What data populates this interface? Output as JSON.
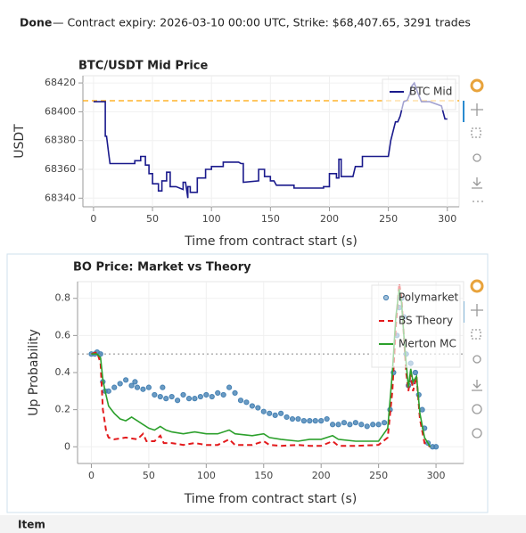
{
  "header": {
    "status": "Done",
    "text": "— Contract expiry: 2026-03-10 00:00 UTC, Strike: $68,407.65, 3291 trades"
  },
  "footer": {
    "label": "Item"
  },
  "chart_data": [
    {
      "type": "line",
      "title": "BTC/USDT Mid Price",
      "x_label": "Time from contract start (s)",
      "y_label": "USDT",
      "xlim": [
        -9,
        310
      ],
      "ylim": [
        68334,
        68425
      ],
      "xticks": [
        0,
        50,
        100,
        150,
        200,
        250,
        300
      ],
      "yticks": [
        68340,
        68360,
        68380,
        68400,
        68420
      ],
      "grid": true,
      "legend": "top_right",
      "hlines": [
        {
          "value": 68407.65,
          "color": "#ffa500",
          "dash": "dashed"
        }
      ],
      "series": [
        {
          "name": "BTC Mid",
          "color": "#1a1a8c",
          "style": "line",
          "x": [
            0,
            10,
            10,
            11,
            13,
            14,
            35,
            35,
            40,
            40,
            44,
            44,
            47,
            47,
            50,
            50,
            55,
            55,
            58,
            58,
            62,
            62,
            65,
            65,
            70,
            76,
            76,
            78,
            80,
            80,
            82,
            82,
            88,
            88,
            95,
            95,
            100,
            100,
            110,
            110,
            115,
            123,
            125,
            127,
            127,
            140,
            140,
            145,
            145,
            150,
            150,
            153,
            155,
            170,
            170,
            195,
            195,
            200,
            200,
            206,
            206,
            208,
            208,
            210,
            210,
            220,
            222,
            228,
            228,
            230,
            230,
            250,
            252,
            256,
            258,
            260,
            263,
            266,
            268,
            270,
            272,
            275,
            278,
            280,
            285,
            295,
            298,
            300
          ],
          "values": [
            68407,
            68407,
            68383,
            68383,
            68370,
            68364,
            68364,
            68366,
            68366,
            68369,
            68369,
            68363,
            68363,
            68357,
            68357,
            68350,
            68350,
            68345,
            68345,
            68352,
            68352,
            68358,
            68358,
            68348,
            68348,
            68346,
            68351,
            68351,
            68340,
            68348,
            68348,
            68344,
            68344,
            68354,
            68354,
            68360,
            68360,
            68362,
            68362,
            68365,
            68365,
            68365,
            68364,
            68364,
            68351,
            68352,
            68360,
            68360,
            68355,
            68355,
            68352,
            68352,
            68349,
            68349,
            68347,
            68347,
            68348,
            68348,
            68357,
            68357,
            68354,
            68354,
            68367,
            68367,
            68355,
            68355,
            68362,
            68362,
            68369,
            68369,
            68369,
            68369,
            68380,
            68393,
            68393,
            68397,
            68407,
            68408,
            68412,
            68418,
            68420,
            68413,
            68407,
            68407,
            68407,
            68404,
            68395,
            68395
          ]
        }
      ]
    },
    {
      "type": "line",
      "title": "BO Price: Market vs Theory",
      "x_label": "Time from contract start (s)",
      "y_label": "Up Probability",
      "xlim": [
        -12,
        324
      ],
      "ylim": [
        -0.09,
        0.89
      ],
      "xticks": [
        0,
        50,
        100,
        150,
        200,
        250,
        300
      ],
      "yticks": [
        0,
        0.2,
        0.4,
        0.6,
        0.8
      ],
      "grid": true,
      "legend": "top_right",
      "hlines": [
        {
          "value": 0.5,
          "color": "#aaaaaa",
          "dash": "dotted"
        }
      ],
      "series": [
        {
          "name": "Polymarket",
          "color": "#4682b4",
          "style": "dots",
          "x": [
            0,
            3,
            5,
            8,
            10,
            12,
            15,
            20,
            25,
            30,
            35,
            38,
            40,
            45,
            50,
            55,
            60,
            62,
            65,
            70,
            75,
            80,
            85,
            90,
            95,
            100,
            105,
            110,
            115,
            120,
            125,
            130,
            135,
            140,
            145,
            150,
            155,
            160,
            165,
            170,
            175,
            180,
            185,
            190,
            195,
            200,
            205,
            210,
            215,
            220,
            225,
            230,
            235,
            240,
            245,
            250,
            255,
            260,
            263,
            266,
            268,
            270,
            272,
            274,
            276,
            278,
            280,
            282,
            285,
            288,
            290,
            293,
            297,
            300
          ],
          "values": [
            0.5,
            0.5,
            0.51,
            0.5,
            0.35,
            0.3,
            0.3,
            0.32,
            0.34,
            0.36,
            0.33,
            0.35,
            0.32,
            0.31,
            0.32,
            0.28,
            0.27,
            0.32,
            0.26,
            0.27,
            0.25,
            0.28,
            0.26,
            0.26,
            0.27,
            0.28,
            0.27,
            0.29,
            0.28,
            0.32,
            0.29,
            0.25,
            0.24,
            0.22,
            0.21,
            0.19,
            0.18,
            0.17,
            0.18,
            0.16,
            0.15,
            0.15,
            0.14,
            0.14,
            0.14,
            0.14,
            0.15,
            0.12,
            0.12,
            0.13,
            0.12,
            0.13,
            0.12,
            0.11,
            0.12,
            0.12,
            0.13,
            0.2,
            0.4,
            0.6,
            0.75,
            0.8,
            0.7,
            0.5,
            0.33,
            0.45,
            0.35,
            0.4,
            0.28,
            0.2,
            0.1,
            0.02,
            0,
            0
          ]
        },
        {
          "name": "BS Theory",
          "color": "#e31a1c",
          "style": "dashed",
          "x": [
            0,
            5,
            8,
            10,
            13,
            15,
            20,
            30,
            40,
            45,
            48,
            55,
            60,
            63,
            70,
            80,
            90,
            100,
            110,
            120,
            125,
            140,
            150,
            155,
            165,
            180,
            190,
            200,
            210,
            215,
            230,
            250,
            258,
            262,
            265,
            268,
            270,
            272,
            274,
            276,
            278,
            280,
            283,
            286,
            290,
            295
          ],
          "values": [
            0.5,
            0.51,
            0.45,
            0.2,
            0.08,
            0.05,
            0.04,
            0.05,
            0.04,
            0.07,
            0.03,
            0.03,
            0.06,
            0.02,
            0.02,
            0.01,
            0.02,
            0.01,
            0.01,
            0.04,
            0.01,
            0.01,
            0.03,
            0.01,
            0.005,
            0.01,
            0.005,
            0.005,
            0.03,
            0.005,
            0.005,
            0.01,
            0.05,
            0.3,
            0.65,
            0.88,
            0.8,
            0.6,
            0.4,
            0.3,
            0.4,
            0.3,
            0.38,
            0.15,
            0.02,
            0
          ]
        },
        {
          "name": "Merton MC",
          "color": "#2ca02c",
          "style": "line",
          "x": [
            0,
            5,
            8,
            10,
            12,
            15,
            20,
            25,
            30,
            35,
            40,
            45,
            50,
            55,
            60,
            65,
            70,
            80,
            90,
            100,
            110,
            120,
            125,
            140,
            150,
            155,
            165,
            180,
            190,
            200,
            210,
            215,
            230,
            250,
            258,
            262,
            265,
            268,
            270,
            272,
            274,
            276,
            278,
            280,
            283,
            286,
            290,
            295
          ],
          "values": [
            0.5,
            0.5,
            0.48,
            0.36,
            0.3,
            0.22,
            0.18,
            0.15,
            0.14,
            0.16,
            0.14,
            0.12,
            0.1,
            0.09,
            0.11,
            0.09,
            0.08,
            0.07,
            0.08,
            0.07,
            0.07,
            0.09,
            0.07,
            0.06,
            0.07,
            0.05,
            0.04,
            0.03,
            0.04,
            0.04,
            0.06,
            0.04,
            0.03,
            0.03,
            0.1,
            0.4,
            0.7,
            0.85,
            0.78,
            0.6,
            0.45,
            0.32,
            0.42,
            0.35,
            0.38,
            0.18,
            0.05,
            0
          ]
        }
      ]
    }
  ]
}
